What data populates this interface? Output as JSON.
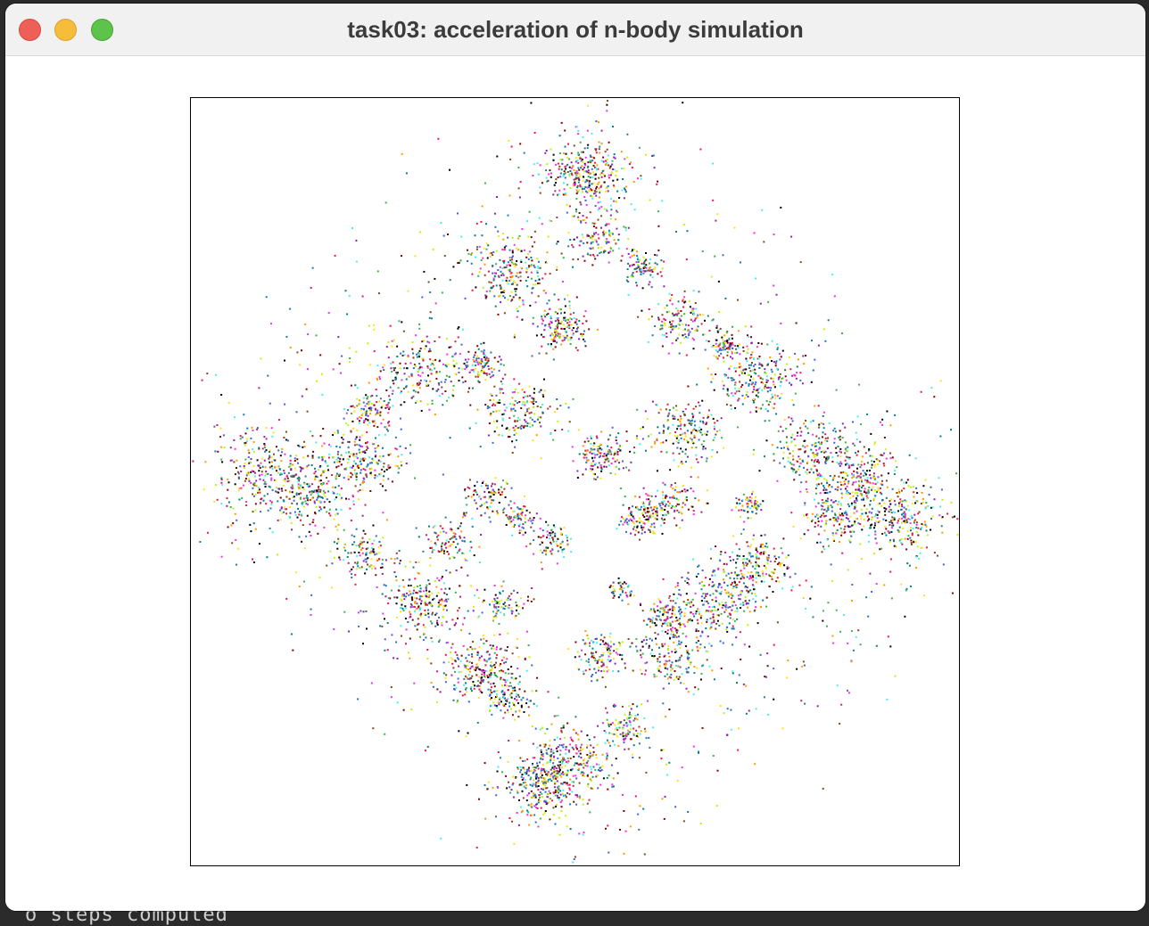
{
  "window": {
    "title": "task03: acceleration of n-body simulation"
  },
  "background_terminal": {
    "visible_text": "o steps computed"
  },
  "simulation": {
    "particle_colors": [
      "#e6194b",
      "#3cb44b",
      "#4363d8",
      "#f032e6",
      "#911eb4",
      "#46f0f0",
      "#000000",
      "#ff9900",
      "#8b4513",
      "#008080",
      "#bcf60c",
      "#ffe119",
      "#800000",
      "#1f77b4"
    ],
    "background": "#ffffff",
    "border": "#000000"
  }
}
